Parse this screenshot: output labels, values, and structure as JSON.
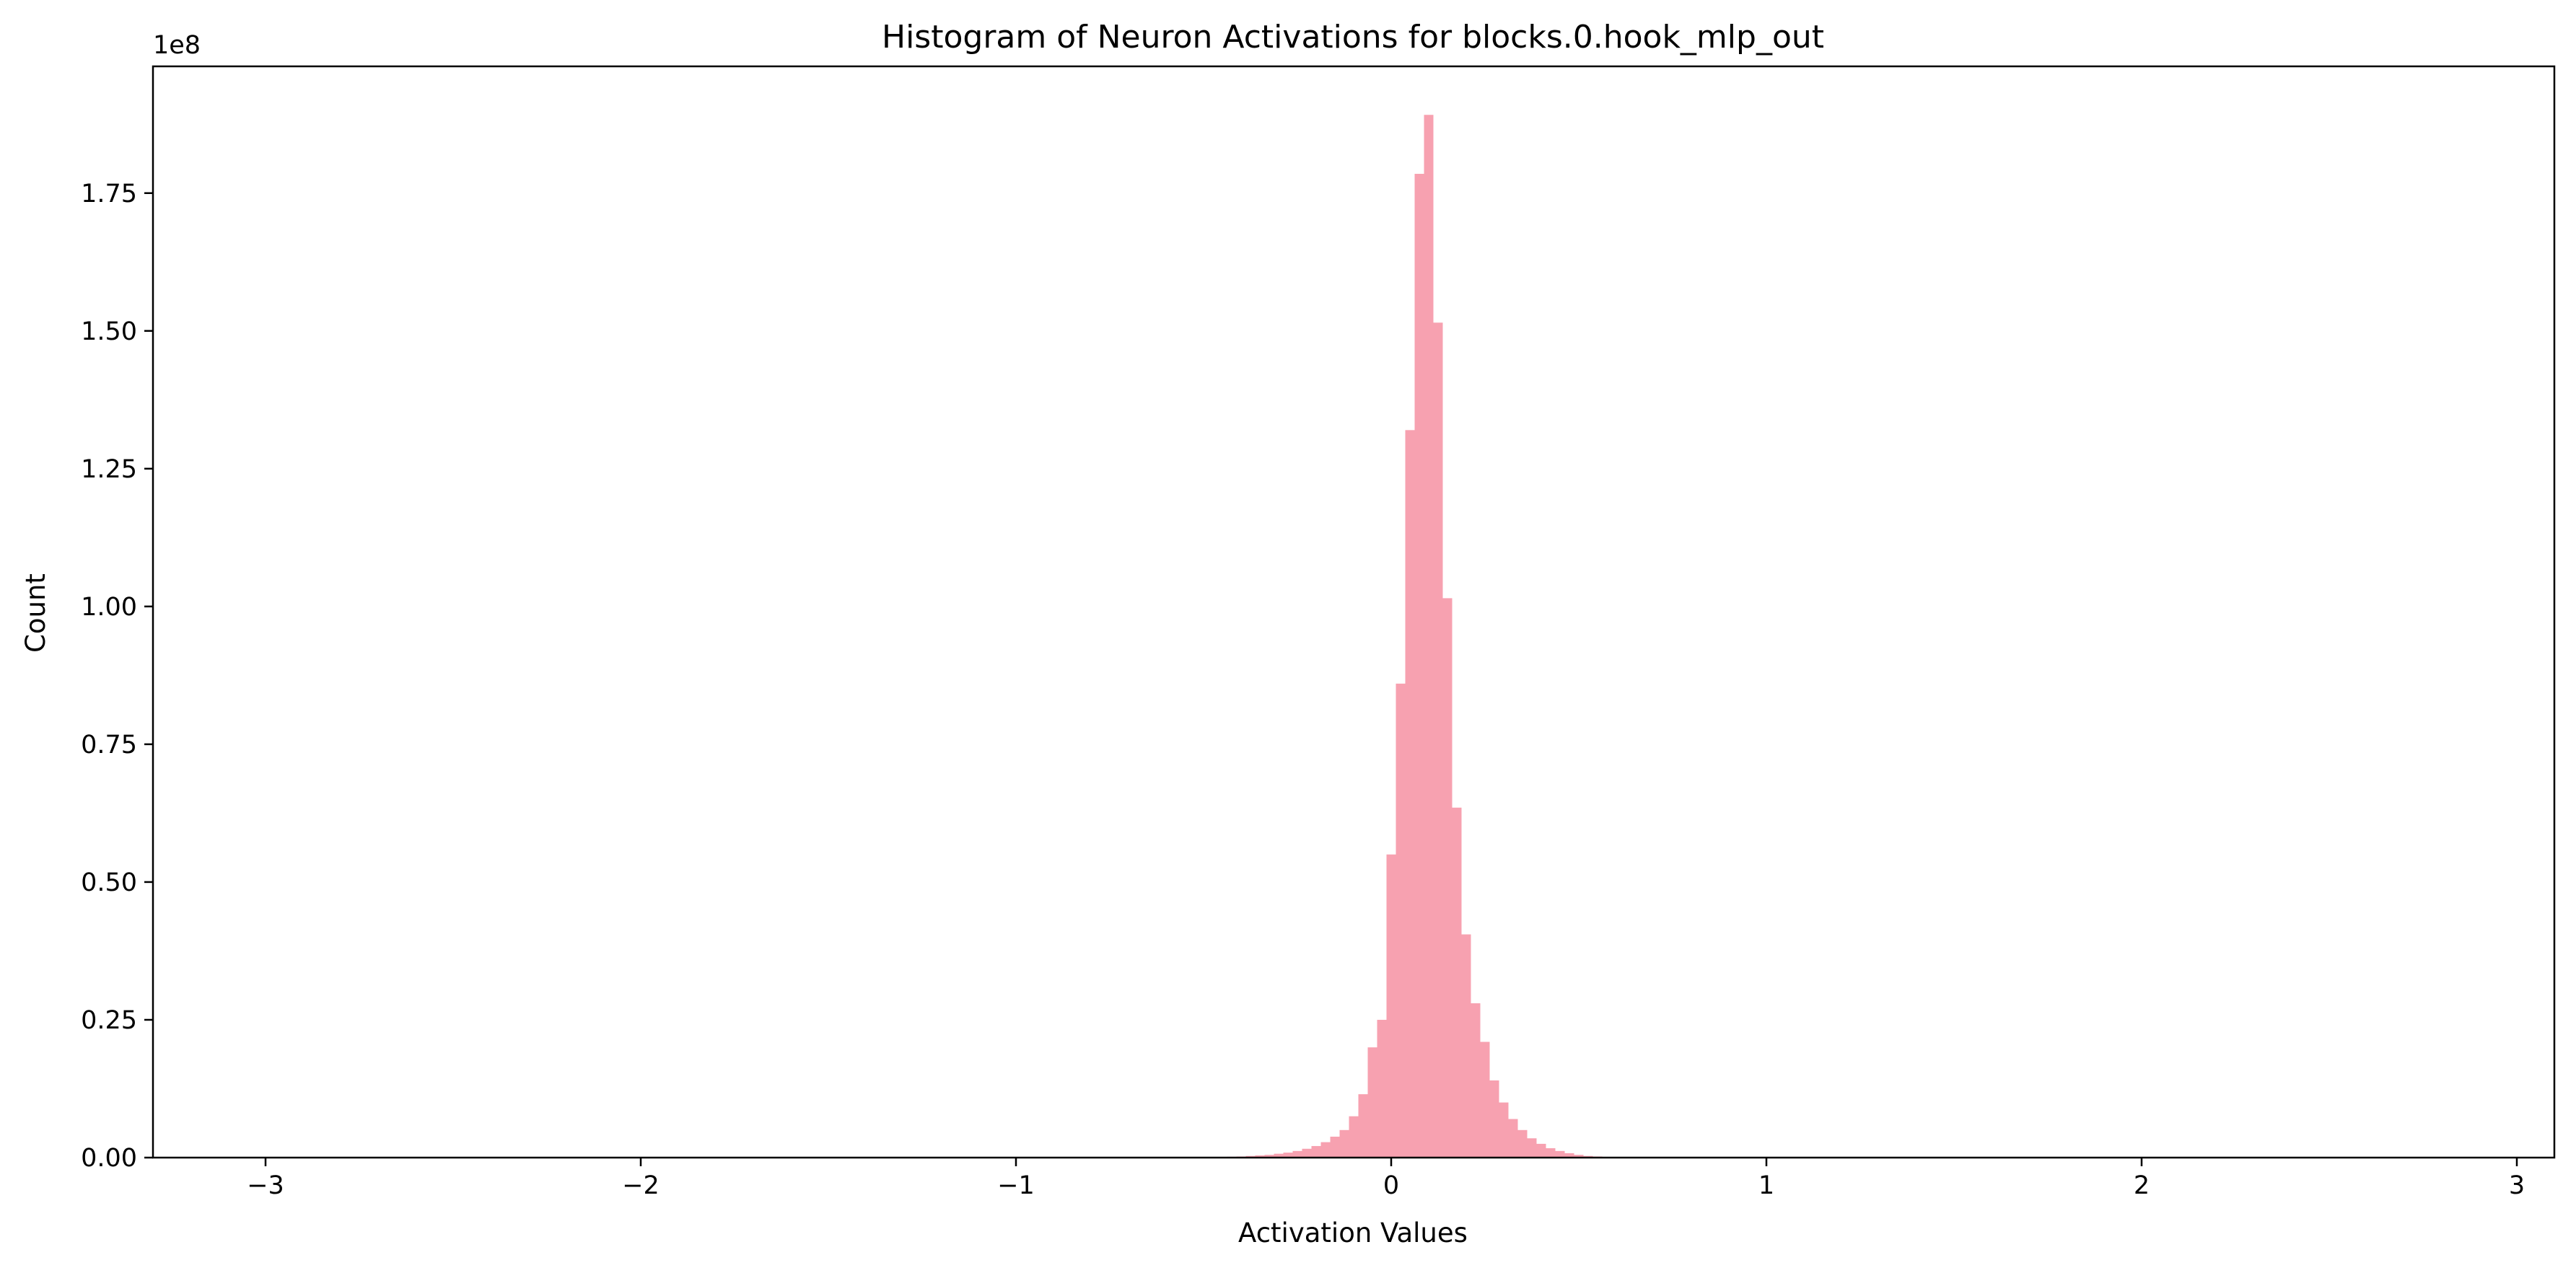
{
  "chart_data": {
    "type": "bar",
    "title": "Histogram of Neuron Activations for blocks.0.hook_mlp_out",
    "xlabel": "Activation Values",
    "ylabel": "Count",
    "y_scale_label": "1e8",
    "xlim": [
      -3.3,
      3.1
    ],
    "ylim": [
      0,
      1.98
    ],
    "xticks": [
      -3,
      -2,
      -1,
      0,
      1,
      2,
      3
    ],
    "xtick_labels": [
      "−3",
      "−2",
      "−1",
      "0",
      "1",
      "2",
      "3"
    ],
    "yticks": [
      0,
      0.25,
      0.5,
      0.75,
      1.0,
      1.25,
      1.5,
      1.75
    ],
    "ytick_labels": [
      "0.00",
      "0.25",
      "0.50",
      "0.75",
      "1.00",
      "1.25",
      "1.50",
      "1.75"
    ],
    "grid": false,
    "bar_color": "#f7a1b0",
    "bin_width": 0.025,
    "bins": [
      {
        "x": -0.45,
        "y": 0.001
      },
      {
        "x": -0.425,
        "y": 0.0015
      },
      {
        "x": -0.4,
        "y": 0.002
      },
      {
        "x": -0.375,
        "y": 0.003
      },
      {
        "x": -0.35,
        "y": 0.004
      },
      {
        "x": -0.325,
        "y": 0.005
      },
      {
        "x": -0.3,
        "y": 0.007
      },
      {
        "x": -0.275,
        "y": 0.009
      },
      {
        "x": -0.25,
        "y": 0.012
      },
      {
        "x": -0.225,
        "y": 0.016
      },
      {
        "x": -0.2,
        "y": 0.021
      },
      {
        "x": -0.175,
        "y": 0.028
      },
      {
        "x": -0.15,
        "y": 0.038
      },
      {
        "x": -0.125,
        "y": 0.05
      },
      {
        "x": -0.1,
        "y": 0.075
      },
      {
        "x": -0.075,
        "y": 0.115
      },
      {
        "x": -0.05,
        "y": 0.2
      },
      {
        "x": -0.025,
        "y": 0.25
      },
      {
        "x": 0.0,
        "y": 0.55
      },
      {
        "x": 0.025,
        "y": 0.86
      },
      {
        "x": 0.05,
        "y": 1.32
      },
      {
        "x": 0.075,
        "y": 1.785
      },
      {
        "x": 0.1,
        "y": 1.892
      },
      {
        "x": 0.125,
        "y": 1.515
      },
      {
        "x": 0.15,
        "y": 1.015
      },
      {
        "x": 0.175,
        "y": 0.635
      },
      {
        "x": 0.2,
        "y": 0.405
      },
      {
        "x": 0.225,
        "y": 0.28
      },
      {
        "x": 0.25,
        "y": 0.21
      },
      {
        "x": 0.275,
        "y": 0.14
      },
      {
        "x": 0.3,
        "y": 0.1
      },
      {
        "x": 0.325,
        "y": 0.07
      },
      {
        "x": 0.35,
        "y": 0.05
      },
      {
        "x": 0.375,
        "y": 0.035
      },
      {
        "x": 0.4,
        "y": 0.025
      },
      {
        "x": 0.425,
        "y": 0.017
      },
      {
        "x": 0.45,
        "y": 0.012
      },
      {
        "x": 0.475,
        "y": 0.008
      },
      {
        "x": 0.5,
        "y": 0.005
      },
      {
        "x": 0.525,
        "y": 0.003
      },
      {
        "x": 0.55,
        "y": 0.002
      },
      {
        "x": 0.575,
        "y": 0.001
      }
    ]
  }
}
